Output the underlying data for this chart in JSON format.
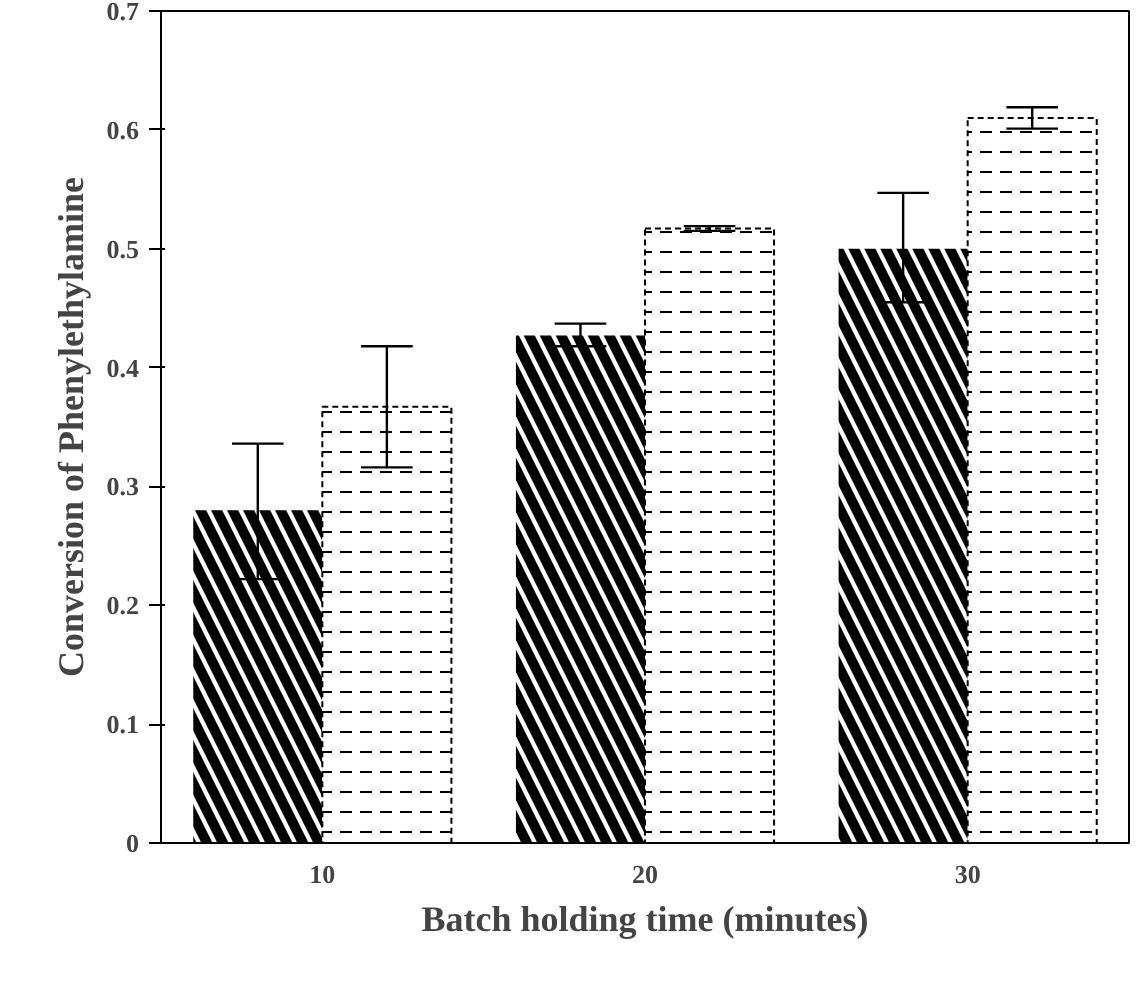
{
  "chart_data": {
    "type": "bar",
    "xlabel": "Batch holding time (minutes)",
    "ylabel": "Conversion of Phenylethylamine",
    "categories": [
      "10",
      "20",
      "30"
    ],
    "series": [
      {
        "color": "#000000",
        "values": [
          0.28,
          0.427,
          0.5
        ],
        "errors": [
          [
            0.222,
            0.336
          ],
          [
            0.418,
            0.437
          ],
          [
            0.455,
            0.547
          ]
        ]
      },
      {
        "color": "#000000",
        "values": [
          0.367,
          0.517,
          0.61
        ],
        "errors": [
          [
            0.316,
            0.418
          ],
          [
            0.515,
            0.519
          ],
          [
            0.601,
            0.619
          ]
        ]
      }
    ],
    "ylim": [
      0,
      0.7
    ],
    "yticks": [
      0,
      0.1,
      0.2,
      0.3,
      0.4,
      0.5,
      0.6,
      0.7
    ],
    "grid": false
  }
}
